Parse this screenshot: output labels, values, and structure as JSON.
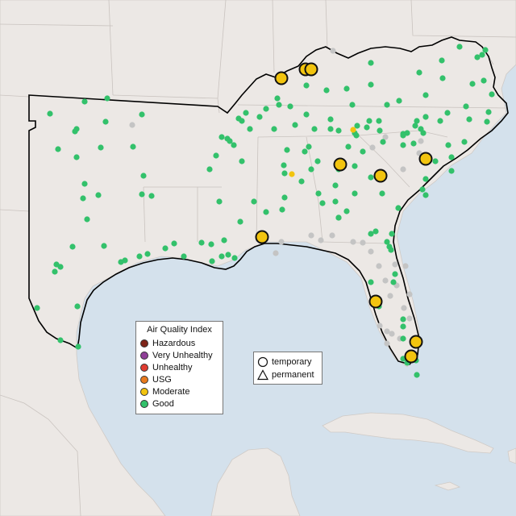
{
  "legend": {
    "title": "Air Quality Index",
    "categories": [
      {
        "label": "Hazardous",
        "color": "#7e2418"
      },
      {
        "label": "Very Unhealthy",
        "color": "#8f3f97"
      },
      {
        "label": "Unhealthy",
        "color": "#e03c31"
      },
      {
        "label": "USG",
        "color": "#e87a1e"
      },
      {
        "label": "Moderate",
        "color": "#f2c40f"
      },
      {
        "label": "Good",
        "color": "#33c16b"
      }
    ]
  },
  "shape_legend": {
    "items": [
      {
        "label": "temporary",
        "shape": "circle-icon"
      },
      {
        "label": "permanent",
        "shape": "triangle-icon"
      }
    ]
  },
  "colors": {
    "water": "#d4e1ec",
    "land": "#ece8e5",
    "region_land": "#f0ebe6",
    "good": "#33c16b",
    "moderate": "#f2c40f",
    "no_data": "#c4c4c4",
    "region_border": "#000000"
  }
}
